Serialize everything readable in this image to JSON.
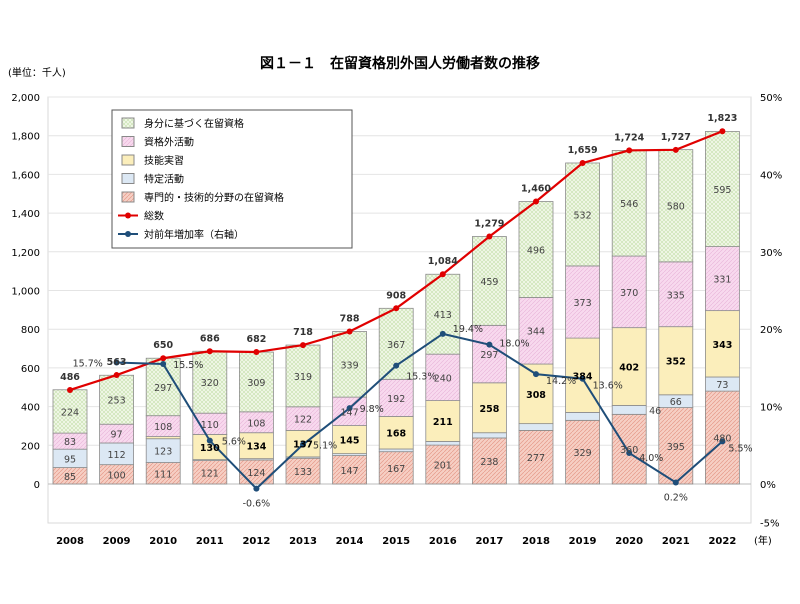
{
  "chart_data": {
    "type": "bar",
    "title": "図１－１　在留資格別外国人労働者数の推移",
    "unit_label": "(単位：千人)",
    "xlabel": "(年)",
    "categories": [
      "2008",
      "2009",
      "2010",
      "2011",
      "2012",
      "2013",
      "2014",
      "2015",
      "2016",
      "2017",
      "2018",
      "2019",
      "2020",
      "2021",
      "2022"
    ],
    "ylim": [
      0,
      2000
    ],
    "y_ticks": [
      "0",
      "200",
      "400",
      "600",
      "800",
      "1,000",
      "1,200",
      "1,400",
      "1,600",
      "1,800",
      "2,000"
    ],
    "y2lim": [
      -5,
      50
    ],
    "y2_ticks": [
      "-5%",
      "0%",
      "10%",
      "20%",
      "30%",
      "40%",
      "50%"
    ],
    "series": [
      {
        "name": "専門的・技術的分野の在留資格",
        "color": "#f6cfc4",
        "values": [
          85,
          100,
          111,
          121,
          124,
          133,
          147,
          167,
          201,
          238,
          277,
          329,
          360,
          395,
          480
        ],
        "labels": [
          "85",
          "100",
          "111",
          "121",
          "124",
          "133",
          "147",
          "167",
          "201",
          "238",
          "277",
          "329",
          "360",
          "395",
          "480"
        ]
      },
      {
        "name": "特定活動",
        "color": "#dce8f4",
        "values": [
          95,
          112,
          123,
          5,
          7,
          7,
          10,
          14,
          19,
          27,
          35,
          41,
          46,
          66,
          73
        ],
        "labels": [
          "95",
          "112",
          "123",
          "",
          "",
          "",
          "",
          "",
          "",
          "",
          "",
          "",
          "46",
          "66",
          "73"
        ]
      },
      {
        "name": "技能実習",
        "color": "#fbeebb",
        "values": [
          0,
          0,
          11,
          130,
          134,
          137,
          145,
          168,
          211,
          258,
          308,
          384,
          402,
          352,
          343
        ],
        "labels": [
          "",
          "",
          "",
          "130",
          "134",
          "137",
          "145",
          "168",
          "211",
          "258",
          "308",
          "384",
          "402",
          "352",
          "343"
        ]
      },
      {
        "name": "資格外活動",
        "color": "#f8d9ee",
        "values": [
          83,
          97,
          108,
          110,
          108,
          122,
          147,
          192,
          240,
          297,
          344,
          373,
          370,
          335,
          331
        ],
        "labels": [
          "83",
          "97",
          "108",
          "110",
          "108",
          "122",
          "147",
          "192",
          "240",
          "297",
          "344",
          "373",
          "370",
          "335",
          "331"
        ]
      },
      {
        "name": "身分に基づく在留資格",
        "color": "#e6f1d6",
        "values": [
          224,
          253,
          297,
          320,
          309,
          319,
          339,
          367,
          413,
          459,
          496,
          532,
          546,
          580,
          595
        ],
        "labels": [
          "224",
          "253",
          "297",
          "320",
          "309",
          "319",
          "339",
          "367",
          "413",
          "459",
          "496",
          "532",
          "546",
          "580",
          "595"
        ]
      }
    ],
    "total": {
      "name": "総数",
      "color": "#e00000",
      "values": [
        486,
        563,
        650,
        686,
        682,
        718,
        788,
        908,
        1084,
        1279,
        1460,
        1659,
        1724,
        1727,
        1823
      ],
      "labels": [
        "486",
        "563",
        "650",
        "686",
        "682",
        "718",
        "788",
        "908",
        "1,084",
        "1,279",
        "1,460",
        "1,659",
        "1,724",
        "1,727",
        "1,823"
      ]
    },
    "growth": {
      "name": "対前年増加率（右軸）",
      "color": "#1f4e79",
      "values": [
        null,
        15.7,
        15.5,
        5.6,
        -0.6,
        5.1,
        9.8,
        15.3,
        19.4,
        18.0,
        14.2,
        13.6,
        4.0,
        0.2,
        5.5
      ],
      "labels": [
        "",
        "15.7%",
        "15.5%",
        "5.6%",
        "-0.6%",
        "5.1%",
        "9.8%",
        "15.3%",
        "19.4%",
        "18.0%",
        "14.2%",
        "13.6%",
        "4.0%",
        "0.2%",
        "5.5%"
      ]
    },
    "legend_order": [
      "身分に基づく在留資格",
      "資格外活動",
      "技能実習",
      "特定活動",
      "専門的・技術的分野の在留資格",
      "総数",
      "対前年増加率（右軸）"
    ],
    "legend_position": "top-left"
  }
}
